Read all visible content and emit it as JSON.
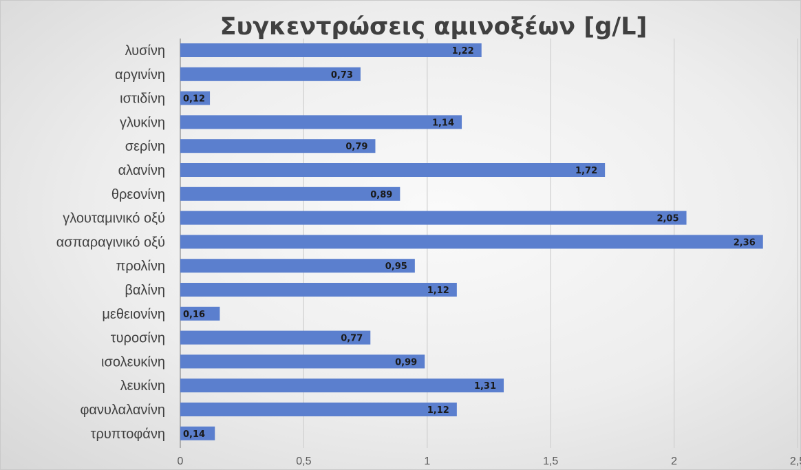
{
  "chart_data": {
    "type": "bar",
    "orientation": "horizontal",
    "title": "Συγκεντρώσεις αμινοξέων [g/L]",
    "categories": [
      "λυσίνη",
      "αργινίνη",
      "ιστιδίνη",
      "γλυκίνη",
      "σερίνη",
      "αλανίνη",
      "θρεονίνη",
      "γλουταμινικό οξύ",
      "ασπαραγινικό οξύ",
      "προλίνη",
      "βαλίνη",
      "μεθειονίνη",
      "τυροσίνη",
      "ισολευκίνη",
      "λευκίνη",
      "φανυλαλανίνη",
      "τρυπτοφάνη"
    ],
    "values": [
      1.22,
      0.73,
      0.12,
      1.14,
      0.79,
      1.72,
      0.89,
      2.05,
      2.36,
      0.95,
      1.12,
      0.16,
      0.77,
      0.99,
      1.31,
      1.12,
      0.14
    ],
    "data_labels": [
      "1,22",
      "0,73",
      "0,12",
      "1,14",
      "0,79",
      "1,72",
      "0,89",
      "2,05",
      "2,36",
      "0,95",
      "1,12",
      "0,16",
      "0,77",
      "0,99",
      "1,31",
      "1,12",
      "0,14"
    ],
    "x_ticks": [
      0,
      0.5,
      1,
      1.5,
      2,
      2.5
    ],
    "x_tick_labels": [
      "0",
      "0,5",
      "1",
      "1,5",
      "2",
      "2,5"
    ],
    "xlim": [
      0,
      2.5
    ],
    "xlabel": "",
    "ylabel": "",
    "grid": "vertical",
    "legend": "none",
    "bar_color": "#5b7fce",
    "background": "#eeeeee"
  }
}
